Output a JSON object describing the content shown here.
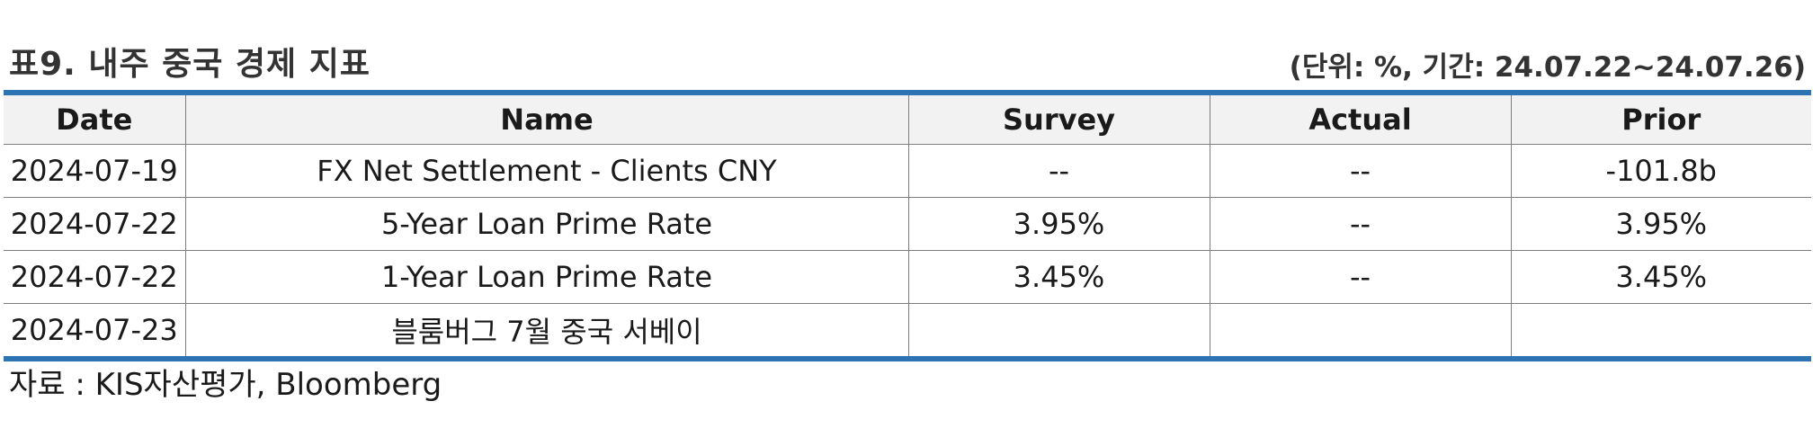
{
  "header": {
    "title": "표9. 내주 중국 경제 지표",
    "unit_note": "(단위: %, 기간: 24.07.22~24.07.26)"
  },
  "table": {
    "columns": [
      "Date",
      "Name",
      "Survey",
      "Actual",
      "Prior"
    ],
    "rows": [
      {
        "date": "2024-07-19",
        "name": "FX Net Settlement - Clients CNY",
        "survey": "--",
        "actual": "--",
        "prior": "-101.8b"
      },
      {
        "date": "2024-07-22",
        "name": "5-Year Loan Prime Rate",
        "survey": "3.95%",
        "actual": "--",
        "prior": "3.95%"
      },
      {
        "date": "2024-07-22",
        "name": "1-Year Loan Prime Rate",
        "survey": "3.45%",
        "actual": "--",
        "prior": "3.45%"
      },
      {
        "date": "2024-07-23",
        "name": "블룸버그 7월 중국 서베이",
        "survey": "",
        "actual": "",
        "prior": ""
      }
    ]
  },
  "footer": {
    "source": "자료 : KIS자산평가, Bloomberg"
  },
  "colors": {
    "accent_border": "#2e74b5",
    "header_bg": "#f2f2f2"
  }
}
